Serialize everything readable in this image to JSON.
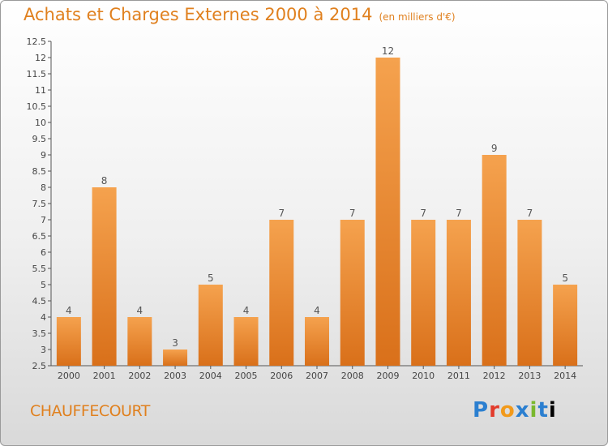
{
  "header": {
    "title": "Achats et Charges Externes 2000 à 2014",
    "unit": "(en milliers d'€)"
  },
  "commune": "CHAUFFECOURT",
  "logo": "Proxiti",
  "colors": {
    "title": "#e0801e",
    "bar_top": "#f5a24e",
    "bar_bottom": "#d9701a"
  },
  "chart_data": {
    "type": "bar",
    "title": "Achats et Charges Externes 2000 à 2014",
    "categories": [
      "2000",
      "2001",
      "2002",
      "2003",
      "2004",
      "2005",
      "2006",
      "2007",
      "2008",
      "2009",
      "2010",
      "2011",
      "2012",
      "2013",
      "2014"
    ],
    "values": [
      4,
      8,
      4,
      3,
      5,
      4,
      7,
      4,
      7,
      12,
      7,
      7,
      9,
      7,
      5
    ],
    "ylim": [
      2.5,
      12.5
    ],
    "yticks": [
      "2.5",
      "3",
      "3.5",
      "4",
      "4.5",
      "5",
      "5.5",
      "6",
      "6.5",
      "7",
      "7.5",
      "8",
      "8.5",
      "9",
      "9.5",
      "10",
      "10.5",
      "11",
      "11.5",
      "12",
      "12.5"
    ],
    "grid": false,
    "legend": "none"
  }
}
